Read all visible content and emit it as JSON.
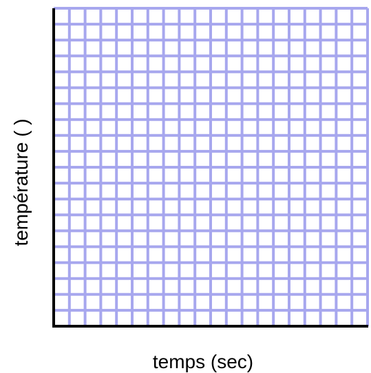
{
  "chart_data": {
    "type": "line",
    "title": "",
    "xlabel": "temps (sec)",
    "ylabel": "température (   )",
    "grid": true,
    "grid_columns": 20,
    "grid_rows": 20,
    "series": [],
    "colors": {
      "grid": "#a7a7ee",
      "axis": "#000000",
      "background": "#ffffff"
    }
  }
}
